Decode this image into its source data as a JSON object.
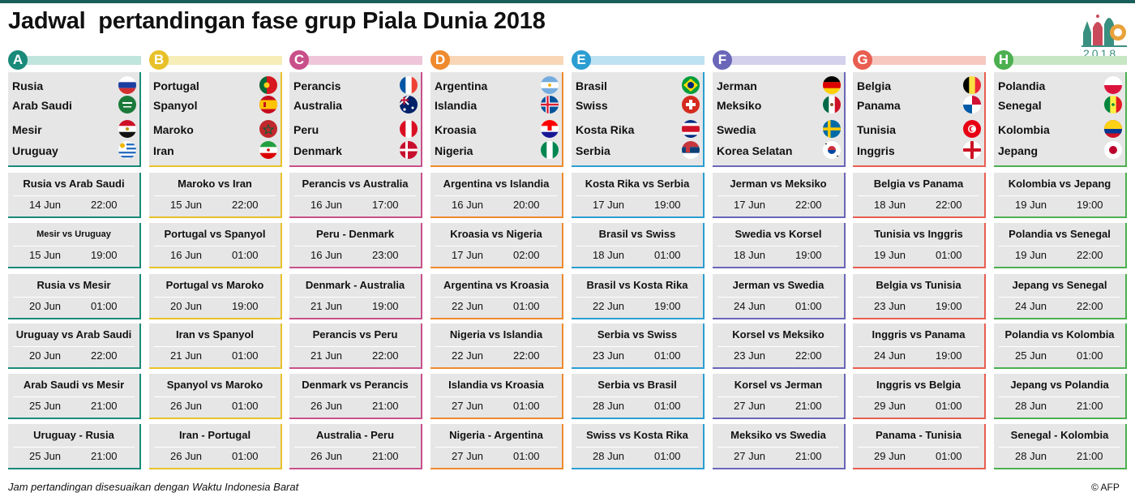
{
  "title": "Jadwal  pertandingan fase grup Piala Dunia 2018",
  "logo": {
    "name": "world-cup-2018-logo",
    "year": "2018"
  },
  "footnote": "Jam pertandingan disesuaikan dengan Waktu Indonesia Barat",
  "credit": "© AFP",
  "groups": [
    {
      "letter": "A",
      "color": "#1a8a7a",
      "bar": "#bfe5dd",
      "teams": [
        {
          "name": "Rusia",
          "flag": "russia"
        },
        {
          "name": "Arab Saudi",
          "flag": "saudi"
        },
        {
          "name": "Mesir",
          "flag": "egypt"
        },
        {
          "name": "Uruguay",
          "flag": "uruguay"
        }
      ],
      "matches": [
        {
          "title": "Rusia vs Arab Saudi",
          "date": "14 Jun",
          "time": "22:00"
        },
        {
          "title": "Mesir vs Uruguay",
          "date": "15 Jun",
          "time": "19:00"
        },
        {
          "title": "Rusia vs Mesir",
          "date": "20 Jun",
          "time": "01:00"
        },
        {
          "title": "Uruguay vs Arab Saudi",
          "date": "20 Jun",
          "time": "22:00"
        },
        {
          "title": "Arab Saudi vs Mesir",
          "date": "25 Jun",
          "time": "21:00"
        },
        {
          "title": "Uruguay - Rusia",
          "date": "25 Jun",
          "time": "21:00"
        }
      ]
    },
    {
      "letter": "B",
      "color": "#e8c12a",
      "bar": "#f7edb8",
      "teams": [
        {
          "name": "Portugal",
          "flag": "portugal"
        },
        {
          "name": "Spanyol",
          "flag": "spain"
        },
        {
          "name": "Maroko",
          "flag": "morocco"
        },
        {
          "name": "Iran",
          "flag": "iran"
        }
      ],
      "matches": [
        {
          "title": "Maroko vs Iran",
          "date": "15 Jun",
          "time": "22:00"
        },
        {
          "title": "Portugal vs Spanyol",
          "date": "16 Jun",
          "time": "01:00"
        },
        {
          "title": "Portugal vs Maroko",
          "date": "20 Jun",
          "time": "19:00"
        },
        {
          "title": "Iran vs Spanyol",
          "date": "21 Jun",
          "time": "01:00"
        },
        {
          "title": "Spanyol vs Maroko",
          "date": "26 Jun",
          "time": "01:00"
        },
        {
          "title": "Iran - Portugal",
          "date": "26 Jun",
          "time": "01:00"
        }
      ]
    },
    {
      "letter": "C",
      "color": "#c8508a",
      "bar": "#efc6d9",
      "teams": [
        {
          "name": "Perancis",
          "flag": "france"
        },
        {
          "name": "Australia",
          "flag": "australia"
        },
        {
          "name": "Peru",
          "flag": "peru"
        },
        {
          "name": "Denmark",
          "flag": "denmark"
        }
      ],
      "matches": [
        {
          "title": "Perancis vs Australia",
          "date": "16 Jun",
          "time": "17:00"
        },
        {
          "title": "Peru - Denmark",
          "date": "16 Jun",
          "time": "23:00"
        },
        {
          "title": "Denmark - Australia",
          "date": "21 Jun",
          "time": "19:00"
        },
        {
          "title": "Perancis vs Peru",
          "date": "21 Jun",
          "time": "22:00"
        },
        {
          "title": "Denmark vs Perancis",
          "date": "26 Jun",
          "time": "21:00"
        },
        {
          "title": "Australia - Peru",
          "date": "26 Jun",
          "time": "21:00"
        }
      ]
    },
    {
      "letter": "D",
      "color": "#ef8a2e",
      "bar": "#f8d6b6",
      "teams": [
        {
          "name": "Argentina",
          "flag": "argentina"
        },
        {
          "name": "Islandia",
          "flag": "iceland"
        },
        {
          "name": "Kroasia",
          "flag": "croatia"
        },
        {
          "name": "Nigeria",
          "flag": "nigeria"
        }
      ],
      "matches": [
        {
          "title": "Argentina vs Islandia",
          "date": "16 Jun",
          "time": "20:00"
        },
        {
          "title": "Kroasia vs Nigeria",
          "date": "17 Jun",
          "time": "02:00"
        },
        {
          "title": "Argentina vs Kroasia",
          "date": "22 Jun",
          "time": "01:00"
        },
        {
          "title": "Nigeria vs Islandia",
          "date": "22 Jun",
          "time": "22:00"
        },
        {
          "title": "Islandia vs Kroasia",
          "date": "27 Jun",
          "time": "01:00"
        },
        {
          "title": "Nigeria - Argentina",
          "date": "27 Jun",
          "time": "01:00"
        }
      ]
    },
    {
      "letter": "E",
      "color": "#2a9ed2",
      "bar": "#bfe2f2",
      "teams": [
        {
          "name": "Brasil",
          "flag": "brazil"
        },
        {
          "name": "Swiss",
          "flag": "switzerland"
        },
        {
          "name": "Kosta Rika",
          "flag": "costarica"
        },
        {
          "name": "Serbia",
          "flag": "serbia"
        }
      ],
      "matches": [
        {
          "title": "Kosta Rika vs Serbia",
          "date": "17 Jun",
          "time": "19:00"
        },
        {
          "title": "Brasil vs Swiss",
          "date": "18 Jun",
          "time": "01:00"
        },
        {
          "title": "Brasil vs Kosta Rika",
          "date": "22 Jun",
          "time": "19:00"
        },
        {
          "title": "Serbia vs Swiss",
          "date": "23 Jun",
          "time": "01:00"
        },
        {
          "title": "Serbia vs Brasil",
          "date": "28 Jun",
          "time": "01:00"
        },
        {
          "title": "Swiss vs Kosta Rika",
          "date": "28 Jun",
          "time": "01:00"
        }
      ]
    },
    {
      "letter": "F",
      "color": "#6a66b8",
      "bar": "#d3d1ec",
      "teams": [
        {
          "name": "Jerman",
          "flag": "germany"
        },
        {
          "name": "Meksiko",
          "flag": "mexico"
        },
        {
          "name": "Swedia",
          "flag": "sweden"
        },
        {
          "name": "Korea Selatan",
          "flag": "korea"
        }
      ],
      "matches": [
        {
          "title": "Jerman vs Meksiko",
          "date": "17 Jun",
          "time": "22:00"
        },
        {
          "title": "Swedia vs Korsel",
          "date": "18 Jun",
          "time": "19:00"
        },
        {
          "title": "Jerman vs Swedia",
          "date": "24 Jun",
          "time": "01:00"
        },
        {
          "title": "Korsel vs Meksiko",
          "date": "23 Jun",
          "time": "22:00"
        },
        {
          "title": "Korsel vs Jerman",
          "date": "27 Jun",
          "time": "21:00"
        },
        {
          "title": "Meksiko vs Swedia",
          "date": "27 Jun",
          "time": "21:00"
        }
      ]
    },
    {
      "letter": "G",
      "color": "#e85e50",
      "bar": "#f6c8c0",
      "teams": [
        {
          "name": "Belgia",
          "flag": "belgium"
        },
        {
          "name": "Panama",
          "flag": "panama"
        },
        {
          "name": "Tunisia",
          "flag": "tunisia"
        },
        {
          "name": "Inggris",
          "flag": "england"
        }
      ],
      "matches": [
        {
          "title": "Belgia vs Panama",
          "date": "18 Jun",
          "time": "22:00"
        },
        {
          "title": "Tunisia vs Inggris",
          "date": "19 Jun",
          "time": "01:00"
        },
        {
          "title": "Belgia vs Tunisia",
          "date": "23 Jun",
          "time": "19:00"
        },
        {
          "title": "Inggris vs Panama",
          "date": "24 Jun",
          "time": "19:00"
        },
        {
          "title": "Inggris vs Belgia",
          "date": "29 Jun",
          "time": "01:00"
        },
        {
          "title": "Panama - Tunisia",
          "date": "29 Jun",
          "time": "01:00"
        }
      ]
    },
    {
      "letter": "H",
      "color": "#4caf50",
      "bar": "#c6e6c4",
      "teams": [
        {
          "name": "Polandia",
          "flag": "poland"
        },
        {
          "name": "Senegal",
          "flag": "senegal"
        },
        {
          "name": "Kolombia",
          "flag": "colombia"
        },
        {
          "name": "Jepang",
          "flag": "japan"
        }
      ],
      "matches": [
        {
          "title": "Kolombia vs Jepang",
          "date": "19 Jun",
          "time": "19:00"
        },
        {
          "title": "Polandia vs Senegal",
          "date": "19 Jun",
          "time": "22:00"
        },
        {
          "title": "Jepang vs Senegal",
          "date": "24 Jun",
          "time": "22:00"
        },
        {
          "title": "Polandia vs Kolombia",
          "date": "25 Jun",
          "time": "01:00"
        },
        {
          "title": "Jepang vs Polandia",
          "date": "28 Jun",
          "time": "21:00"
        },
        {
          "title": "Senegal - Kolombia",
          "date": "28 Jun",
          "time": "21:00"
        }
      ]
    }
  ]
}
